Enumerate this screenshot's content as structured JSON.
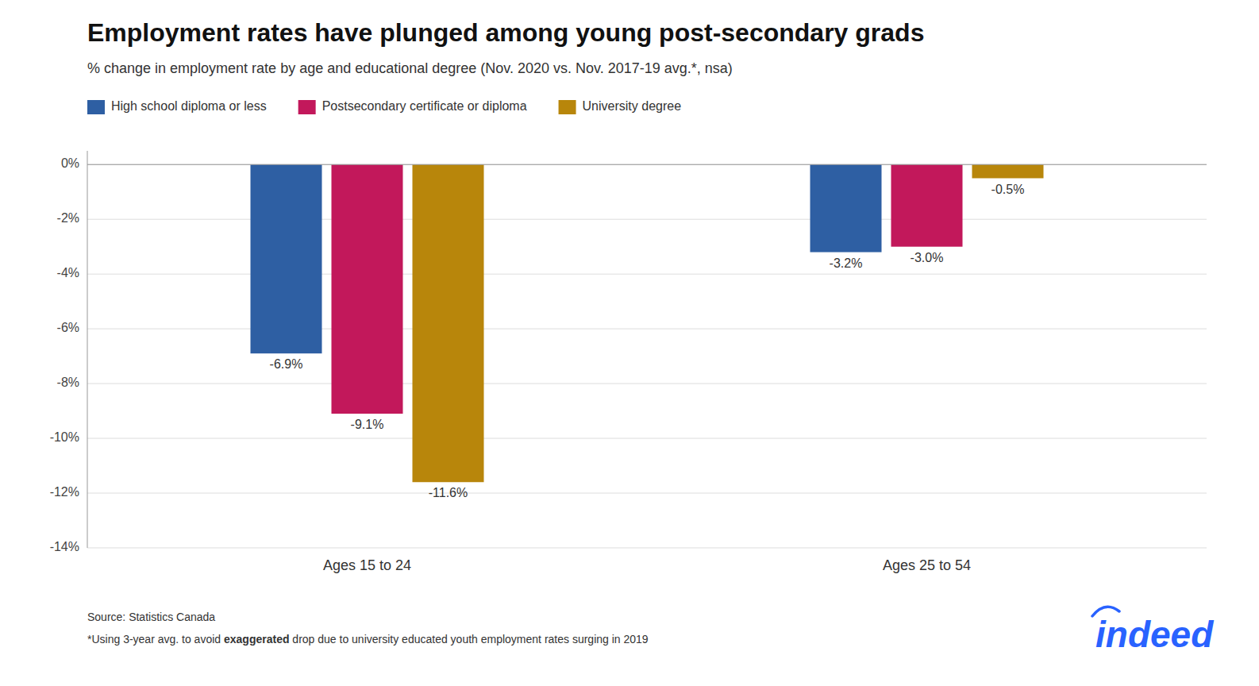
{
  "chart_data": {
    "type": "bar",
    "title": "Employment rates have plunged among young post-secondary grads",
    "subtitle": "% change in employment rate by age and educational degree (Nov. 2020 vs. Nov. 2017-19 avg.*, nsa)",
    "categories": [
      "Ages 15 to 24",
      "Ages 25 to 54"
    ],
    "series": [
      {
        "name": "High school diploma or less",
        "color": "#2E5FA3",
        "values": [
          -6.9,
          -3.2
        ],
        "value_labels": [
          "-6.9%",
          "-3.2%"
        ]
      },
      {
        "name": "Postsecondary certificate or diploma",
        "color": "#C2185B",
        "values": [
          -9.1,
          -3.0
        ],
        "value_labels": [
          "-9.1%",
          "-3.0%"
        ]
      },
      {
        "name": "University degree",
        "color": "#B8860B",
        "values": [
          -11.6,
          -0.5
        ],
        "value_labels": [
          "-11.6%",
          "-0.5%"
        ]
      }
    ],
    "ylim": [
      -14,
      0.5
    ],
    "yticks": [
      {
        "value": 0,
        "label": "0%"
      },
      {
        "value": -2,
        "label": "-2%"
      },
      {
        "value": -4,
        "label": "-4%"
      },
      {
        "value": -6,
        "label": "-6%"
      },
      {
        "value": -8,
        "label": "-8%"
      },
      {
        "value": -10,
        "label": "-10%"
      },
      {
        "value": -12,
        "label": "-12%"
      },
      {
        "value": -14,
        "label": "-14%"
      }
    ],
    "grid": true,
    "legend": "top",
    "data_labels": true,
    "annotations": [
      {
        "text": "Source: Statistics Canada"
      },
      {
        "text": "*Using 3-year avg. to avoid exaggerated drop due to university educated youth employment rates surging in 2019",
        "emphasis": "exaggerated"
      }
    ],
    "logo": {
      "text": "indeed",
      "color": "#2962FF"
    }
  }
}
